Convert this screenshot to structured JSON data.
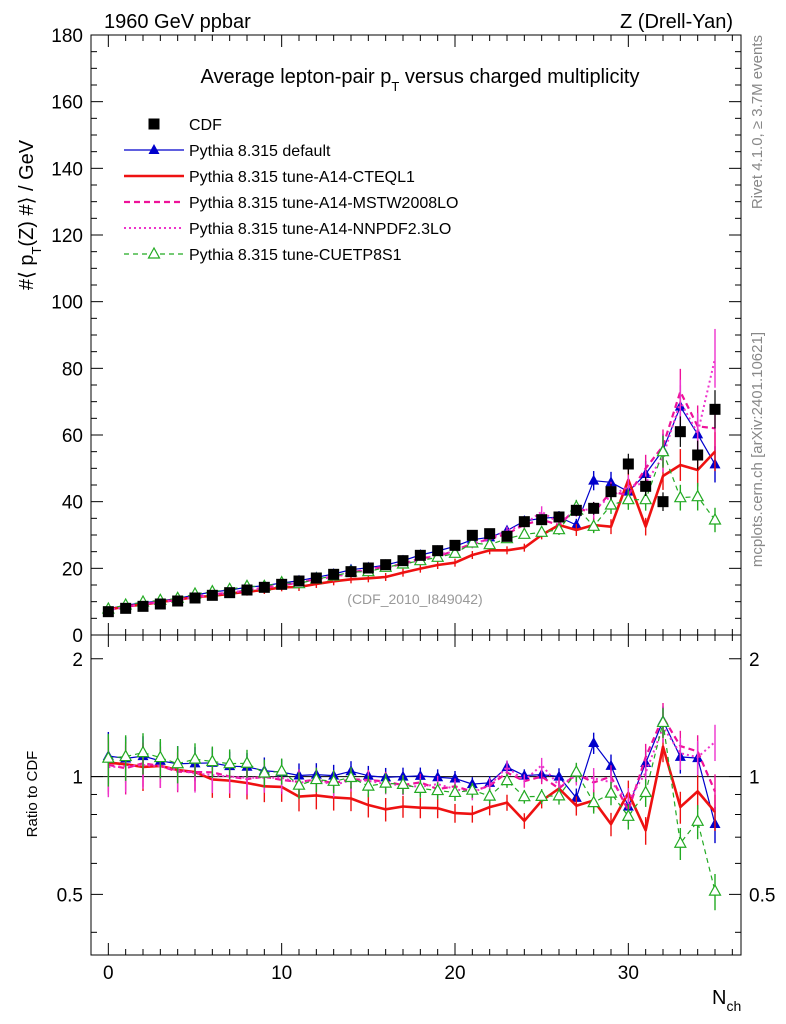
{
  "header": {
    "left": "1960 GeV ppbar",
    "right": "Z (Drell-Yan)"
  },
  "side_labels": {
    "rivet": "Rivet 4.1.0, ≥ 3.7M events",
    "mcplots": "mcplots.cern.ch [arXiv:2401.10621]"
  },
  "chart_data": {
    "type": "line",
    "title": "Average lepton-pair p_T versus charged multiplicity",
    "title_parts": {
      "before": "Average lepton-pair p",
      "sub": "T",
      "after": " versus charged multiplicity"
    },
    "watermark": "(CDF_2010_I849042)",
    "xlabel": "N",
    "xlabel_sub": "ch",
    "ylabel": {
      "before": "#⟨ p",
      "sub": "T",
      "after": "(Z) #⟩ / GeV"
    },
    "ratio_ylabel": "Ratio to CDF",
    "xlim": [
      -1,
      36.5
    ],
    "ylim": [
      0,
      180
    ],
    "ratio_ylim": [
      0.35,
      2.3
    ],
    "x_ticks": [
      0,
      10,
      20,
      30
    ],
    "y_ticks": [
      0,
      20,
      40,
      60,
      80,
      100,
      120,
      140,
      160,
      180
    ],
    "ratio_ticks": [
      0.5,
      1,
      2
    ],
    "x": [
      0,
      1,
      2,
      3,
      4,
      5,
      6,
      7,
      8,
      9,
      10,
      11,
      12,
      13,
      14,
      15,
      16,
      17,
      18,
      19,
      20,
      21,
      22,
      23,
      24,
      25,
      26,
      27,
      28,
      29,
      30,
      31,
      32,
      33,
      34,
      35
    ],
    "series": [
      {
        "name": "CDF",
        "color": "#000000",
        "style": "markers",
        "values": [
          7.0,
          8.0,
          8.6,
          9.3,
          10.2,
          11.1,
          11.9,
          12.7,
          13.5,
          14.3,
          15.2,
          16.2,
          17.1,
          18.2,
          19.0,
          20.1,
          21.1,
          22.3,
          23.9,
          25.3,
          26.9,
          29.9,
          30.4,
          29.6,
          34.0,
          34.6,
          35.4,
          37.4,
          38.0,
          43.0,
          51.3,
          44.6,
          40.0,
          61.0,
          54.0,
          67.7
        ]
      },
      {
        "name": "Pythia 8.315 default",
        "color": "#0000cc",
        "style": "solid-triangle",
        "values": [
          7.9,
          8.9,
          9.7,
          10.2,
          11.0,
          12.0,
          12.9,
          13.5,
          14.3,
          14.8,
          15.6,
          16.3,
          17.3,
          18.3,
          19.6,
          20.2,
          21.0,
          22.3,
          24.0,
          25.2,
          26.6,
          28.6,
          29.3,
          31.3,
          34.2,
          35.0,
          35.4,
          33.0,
          46.3,
          45.8,
          43.0,
          48.3,
          55.5,
          68.5,
          60.2,
          51.2
        ]
      },
      {
        "name": "Pythia 8.315 tune-A14-CTEQL1",
        "color": "#ee1111",
        "style": "thick-solid",
        "values": [
          7.6,
          8.6,
          9.1,
          9.9,
          10.6,
          11.4,
          11.7,
          12.4,
          13.0,
          13.5,
          14.3,
          14.4,
          15.3,
          16.1,
          16.7,
          17.0,
          17.4,
          18.7,
          19.9,
          21.0,
          21.7,
          24.0,
          25.4,
          25.4,
          26.2,
          30.0,
          33.0,
          31.5,
          33.0,
          32.5,
          46.6,
          32.5,
          47.7,
          51.0,
          49.5,
          55.0
        ]
      },
      {
        "name": "Pythia 8.315 tune-A14-MSTW2008LO",
        "color": "#ee1199",
        "style": "dashed",
        "values": [
          7.5,
          8.4,
          9.3,
          9.9,
          10.5,
          11.4,
          12.2,
          12.7,
          13.3,
          14.3,
          14.9,
          15.7,
          16.8,
          17.5,
          18.7,
          19.7,
          20.5,
          21.2,
          23.1,
          23.5,
          25.4,
          27.4,
          28.8,
          30.3,
          33.1,
          34.6,
          33.0,
          38.0,
          36.7,
          43.0,
          42.0,
          50.0,
          56.7,
          73.0,
          62.6,
          62.0
        ]
      },
      {
        "name": "Pythia 8.315 tune-A14-NNPDF2.3LO",
        "color": "#ee33cc",
        "style": "dotted",
        "values": [
          7.4,
          8.5,
          9.2,
          9.9,
          10.6,
          11.3,
          12.0,
          12.7,
          13.4,
          14.2,
          15.1,
          15.6,
          16.8,
          17.3,
          18.6,
          19.6,
          20.2,
          21.2,
          22.5,
          24.2,
          25.0,
          27.2,
          28.9,
          31.3,
          33.2,
          37.0,
          33.6,
          37.6,
          37.6,
          41.6,
          44.6,
          45.6,
          53.5,
          70.0,
          60.5,
          83.0
        ]
      },
      {
        "name": "Pythia 8.315 tune-CUETP8S1",
        "color": "#22aa22",
        "style": "dashed-open-triangle",
        "values": [
          7.8,
          9.0,
          9.9,
          10.4,
          11.0,
          12.3,
          13.0,
          13.7,
          14.6,
          14.6,
          15.7,
          15.4,
          16.8,
          17.7,
          18.9,
          19.0,
          20.3,
          21.3,
          22.3,
          23.3,
          24.5,
          27.6,
          27.1,
          28.9,
          30.2,
          30.8,
          31.6,
          38.4,
          32.6,
          39.0,
          40.6,
          40.6,
          55.0,
          41.2,
          41.5,
          34.5
        ]
      }
    ],
    "legend": [
      "CDF",
      "Pythia 8.315 default",
      "Pythia 8.315 tune-A14-CTEQL1",
      "Pythia 8.315 tune-A14-MSTW2008LO",
      "Pythia 8.315 tune-A14-NNPDF2.3LO",
      "Pythia 8.315 tune-CUETP8S1"
    ]
  }
}
